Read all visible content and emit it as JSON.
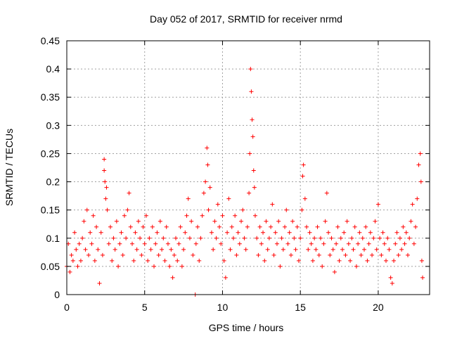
{
  "chart_data": {
    "type": "scatter",
    "title": "Day 052 of 2017, SRMTID for receiver nrmd",
    "xlabel": "GPS time / hours",
    "ylabel": "SRMTID / TECUs",
    "xlim": [
      0,
      23.3
    ],
    "ylim": [
      0,
      0.45
    ],
    "xticks": [
      0,
      5,
      10,
      15,
      20
    ],
    "xtick_labels": [
      "0",
      "5",
      "10",
      "15",
      "20"
    ],
    "yticks": [
      0,
      0.05,
      0.1,
      0.15,
      0.2,
      0.25,
      0.3,
      0.35,
      0.4,
      0.45
    ],
    "ytick_labels": [
      "0",
      "0.05",
      "0.1",
      "0.15",
      "0.2",
      "0.25",
      "0.3",
      "0.35",
      "0.4",
      "0.45"
    ],
    "grid": true,
    "marker": "+",
    "color": "#ff0000",
    "series": [
      {
        "name": "SRMTID",
        "points": [
          [
            0.0,
            0.05
          ],
          [
            0.1,
            0.09
          ],
          [
            0.2,
            0.04
          ],
          [
            0.3,
            0.07
          ],
          [
            0.4,
            0.06
          ],
          [
            0.5,
            0.11
          ],
          [
            0.6,
            0.08
          ],
          [
            0.7,
            0.05
          ],
          [
            0.8,
            0.09
          ],
          [
            0.9,
            0.06
          ],
          [
            1.0,
            0.1
          ],
          [
            1.1,
            0.13
          ],
          [
            1.2,
            0.08
          ],
          [
            1.3,
            0.15
          ],
          [
            1.4,
            0.07
          ],
          [
            1.5,
            0.11
          ],
          [
            1.6,
            0.09
          ],
          [
            1.7,
            0.14
          ],
          [
            1.8,
            0.06
          ],
          [
            1.9,
            0.12
          ],
          [
            2.0,
            0.08
          ],
          [
            2.1,
            0.02
          ],
          [
            2.2,
            0.11
          ],
          [
            2.3,
            0.07
          ],
          [
            2.4,
            0.24
          ],
          [
            2.4,
            0.22
          ],
          [
            2.45,
            0.2
          ],
          [
            2.5,
            0.17
          ],
          [
            2.55,
            0.19
          ],
          [
            2.6,
            0.15
          ],
          [
            2.7,
            0.09
          ],
          [
            2.8,
            0.12
          ],
          [
            2.9,
            0.06
          ],
          [
            3.0,
            0.1
          ],
          [
            3.1,
            0.08
          ],
          [
            3.2,
            0.13
          ],
          [
            3.3,
            0.05
          ],
          [
            3.4,
            0.09
          ],
          [
            3.5,
            0.11
          ],
          [
            3.6,
            0.07
          ],
          [
            3.7,
            0.14
          ],
          [
            3.8,
            0.1
          ],
          [
            3.9,
            0.15
          ],
          [
            4.0,
            0.18
          ],
          [
            4.1,
            0.12
          ],
          [
            4.2,
            0.09
          ],
          [
            4.3,
            0.06
          ],
          [
            4.4,
            0.11
          ],
          [
            4.5,
            0.08
          ],
          [
            4.6,
            0.13
          ],
          [
            4.7,
            0.1
          ],
          [
            4.8,
            0.07
          ],
          [
            4.9,
            0.12
          ],
          [
            5.0,
            0.09
          ],
          [
            5.1,
            0.14
          ],
          [
            5.2,
            0.06
          ],
          [
            5.3,
            0.1
          ],
          [
            5.4,
            0.08
          ],
          [
            5.5,
            0.12
          ],
          [
            5.6,
            0.05
          ],
          [
            5.7,
            0.09
          ],
          [
            5.8,
            0.11
          ],
          [
            5.9,
            0.07
          ],
          [
            6.0,
            0.13
          ],
          [
            6.1,
            0.08
          ],
          [
            6.2,
            0.1
          ],
          [
            6.3,
            0.06
          ],
          [
            6.4,
            0.12
          ],
          [
            6.5,
            0.09
          ],
          [
            6.6,
            0.05
          ],
          [
            6.7,
            0.08
          ],
          [
            6.8,
            0.03
          ],
          [
            6.9,
            0.07
          ],
          [
            7.0,
            0.1
          ],
          [
            7.1,
            0.06
          ],
          [
            7.2,
            0.09
          ],
          [
            7.3,
            0.12
          ],
          [
            7.4,
            0.05
          ],
          [
            7.5,
            0.08
          ],
          [
            7.6,
            0.11
          ],
          [
            7.7,
            0.14
          ],
          [
            7.8,
            0.17
          ],
          [
            7.9,
            0.1
          ],
          [
            8.0,
            0.13
          ],
          [
            8.1,
            0.07
          ],
          [
            8.25,
            0.0
          ],
          [
            8.3,
            0.09
          ],
          [
            8.4,
            0.12
          ],
          [
            8.5,
            0.06
          ],
          [
            8.6,
            0.1
          ],
          [
            8.7,
            0.14
          ],
          [
            8.8,
            0.18
          ],
          [
            8.9,
            0.2
          ],
          [
            9.0,
            0.26
          ],
          [
            9.05,
            0.23
          ],
          [
            9.1,
            0.15
          ],
          [
            9.2,
            0.19
          ],
          [
            9.3,
            0.11
          ],
          [
            9.4,
            0.08
          ],
          [
            9.5,
            0.13
          ],
          [
            9.6,
            0.1
          ],
          [
            9.7,
            0.16
          ],
          [
            9.8,
            0.12
          ],
          [
            9.9,
            0.09
          ],
          [
            10.0,
            0.14
          ],
          [
            10.1,
            0.06
          ],
          [
            10.2,
            0.03
          ],
          [
            10.3,
            0.11
          ],
          [
            10.4,
            0.17
          ],
          [
            10.5,
            0.08
          ],
          [
            10.6,
            0.12
          ],
          [
            10.7,
            0.1
          ],
          [
            10.8,
            0.14
          ],
          [
            10.9,
            0.07
          ],
          [
            11.0,
            0.11
          ],
          [
            11.1,
            0.09
          ],
          [
            11.2,
            0.13
          ],
          [
            11.3,
            0.15
          ],
          [
            11.4,
            0.1
          ],
          [
            11.5,
            0.08
          ],
          [
            11.6,
            0.12
          ],
          [
            11.7,
            0.18
          ],
          [
            11.75,
            0.25
          ],
          [
            11.8,
            0.4
          ],
          [
            11.85,
            0.36
          ],
          [
            11.9,
            0.31
          ],
          [
            11.95,
            0.28
          ],
          [
            12.0,
            0.22
          ],
          [
            12.05,
            0.19
          ],
          [
            12.1,
            0.14
          ],
          [
            12.2,
            0.1
          ],
          [
            12.3,
            0.07
          ],
          [
            12.4,
            0.12
          ],
          [
            12.5,
            0.09
          ],
          [
            12.6,
            0.11
          ],
          [
            12.7,
            0.06
          ],
          [
            12.8,
            0.13
          ],
          [
            12.9,
            0.08
          ],
          [
            13.0,
            0.1
          ],
          [
            13.1,
            0.12
          ],
          [
            13.2,
            0.16
          ],
          [
            13.3,
            0.07
          ],
          [
            13.4,
            0.11
          ],
          [
            13.5,
            0.09
          ],
          [
            13.6,
            0.13
          ],
          [
            13.7,
            0.05
          ],
          [
            13.8,
            0.1
          ],
          [
            13.9,
            0.08
          ],
          [
            14.0,
            0.12
          ],
          [
            14.1,
            0.15
          ],
          [
            14.2,
            0.09
          ],
          [
            14.3,
            0.11
          ],
          [
            14.4,
            0.07
          ],
          [
            14.5,
            0.13
          ],
          [
            14.6,
            0.1
          ],
          [
            14.7,
            0.08
          ],
          [
            14.8,
            0.12
          ],
          [
            14.9,
            0.06
          ],
          [
            15.0,
            0.1
          ],
          [
            15.1,
            0.15
          ],
          [
            15.15,
            0.21
          ],
          [
            15.2,
            0.23
          ],
          [
            15.3,
            0.17
          ],
          [
            15.4,
            0.12
          ],
          [
            15.5,
            0.08
          ],
          [
            15.6,
            0.11
          ],
          [
            15.7,
            0.09
          ],
          [
            15.8,
            0.06
          ],
          [
            15.9,
            0.1
          ],
          [
            16.0,
            0.08
          ],
          [
            16.1,
            0.12
          ],
          [
            16.2,
            0.07
          ],
          [
            16.3,
            0.1
          ],
          [
            16.4,
            0.05
          ],
          [
            16.5,
            0.09
          ],
          [
            16.6,
            0.13
          ],
          [
            16.7,
            0.18
          ],
          [
            16.8,
            0.11
          ],
          [
            16.9,
            0.07
          ],
          [
            17.0,
            0.1
          ],
          [
            17.1,
            0.08
          ],
          [
            17.2,
            0.04
          ],
          [
            17.3,
            0.09
          ],
          [
            17.4,
            0.12
          ],
          [
            17.5,
            0.06
          ],
          [
            17.6,
            0.1
          ],
          [
            17.7,
            0.08
          ],
          [
            17.8,
            0.11
          ],
          [
            17.9,
            0.07
          ],
          [
            18.0,
            0.13
          ],
          [
            18.1,
            0.09
          ],
          [
            18.2,
            0.06
          ],
          [
            18.3,
            0.1
          ],
          [
            18.4,
            0.08
          ],
          [
            18.5,
            0.12
          ],
          [
            18.6,
            0.05
          ],
          [
            18.7,
            0.09
          ],
          [
            18.8,
            0.11
          ],
          [
            18.9,
            0.07
          ],
          [
            19.0,
            0.1
          ],
          [
            19.1,
            0.08
          ],
          [
            19.2,
            0.12
          ],
          [
            19.3,
            0.06
          ],
          [
            19.4,
            0.09
          ],
          [
            19.5,
            0.11
          ],
          [
            19.6,
            0.07
          ],
          [
            19.7,
            0.1
          ],
          [
            19.8,
            0.13
          ],
          [
            19.9,
            0.08
          ],
          [
            20.0,
            0.16
          ],
          [
            20.1,
            0.1
          ],
          [
            20.2,
            0.07
          ],
          [
            20.3,
            0.11
          ],
          [
            20.4,
            0.09
          ],
          [
            20.5,
            0.06
          ],
          [
            20.6,
            0.1
          ],
          [
            20.7,
            0.08
          ],
          [
            20.8,
            0.03
          ],
          [
            20.9,
            0.02
          ],
          [
            21.0,
            0.06
          ],
          [
            21.1,
            0.09
          ],
          [
            21.2,
            0.11
          ],
          [
            21.3,
            0.07
          ],
          [
            21.4,
            0.1
          ],
          [
            21.5,
            0.08
          ],
          [
            21.6,
            0.12
          ],
          [
            21.7,
            0.09
          ],
          [
            21.8,
            0.11
          ],
          [
            21.9,
            0.07
          ],
          [
            22.0,
            0.1
          ],
          [
            22.1,
            0.13
          ],
          [
            22.2,
            0.16
          ],
          [
            22.3,
            0.09
          ],
          [
            22.4,
            0.12
          ],
          [
            22.5,
            0.17
          ],
          [
            22.6,
            0.23
          ],
          [
            22.7,
            0.25
          ],
          [
            22.75,
            0.2
          ],
          [
            22.8,
            0.06
          ],
          [
            22.85,
            0.03
          ]
        ]
      }
    ]
  }
}
